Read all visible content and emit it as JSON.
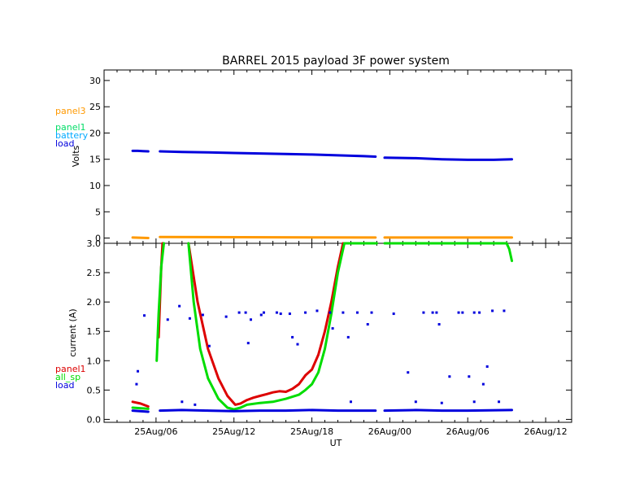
{
  "chart_data": {
    "type": "line",
    "title": "BARREL 2015 payload 3F power system",
    "xlabel": "UT",
    "x_ticks": [
      "25Aug/06",
      "25Aug/12",
      "25Aug/18",
      "26Aug/00",
      "26Aug/06",
      "26Aug/12"
    ],
    "x_range_hours": [
      2,
      38
    ],
    "x_tick_hours": [
      6,
      12,
      18,
      24,
      30,
      36
    ],
    "panels": [
      {
        "id": "voltage",
        "ylabel": "Volts",
        "ylim": [
          -1,
          32
        ],
        "yticks": [
          "0",
          "5",
          "10",
          "15",
          "20",
          "25",
          "30"
        ],
        "ytick_values": [
          0,
          5,
          10,
          15,
          20,
          25,
          30
        ],
        "legend": [
          {
            "name": "panel3",
            "color": "#ff9900"
          },
          {
            "name": "panel1",
            "color": "#00dd66"
          },
          {
            "name": "battery",
            "color": "#00aaff"
          },
          {
            "name": "load",
            "color": "#0000dd"
          }
        ],
        "series": [
          {
            "name": "load",
            "color": "#0000dd",
            "segments": [
              [
                [
                  4.2,
                  16.6
                ],
                [
                  4.6,
                  16.6
                ],
                [
                  5.0,
                  16.55
                ],
                [
                  5.4,
                  16.5
                ]
              ],
              [
                [
                  6.3,
                  16.5
                ],
                [
                  8,
                  16.4
                ],
                [
                  10,
                  16.3
                ],
                [
                  12,
                  16.2
                ],
                [
                  14,
                  16.1
                ],
                [
                  16,
                  16.0
                ],
                [
                  18,
                  15.9
                ],
                [
                  20,
                  15.75
                ],
                [
                  22,
                  15.6
                ],
                [
                  22.9,
                  15.5
                ]
              ],
              [
                [
                  23.6,
                  15.3
                ],
                [
                  26,
                  15.2
                ],
                [
                  28,
                  15.0
                ],
                [
                  30,
                  14.9
                ],
                [
                  32,
                  14.9
                ],
                [
                  33.4,
                  15.0
                ]
              ]
            ]
          },
          {
            "name": "panel3",
            "color": "#ff9900",
            "segments": [
              [
                [
                  4.2,
                  0.1
                ],
                [
                  5.4,
                  0.0
                ]
              ],
              [
                [
                  6.3,
                  0.2
                ],
                [
                  22.9,
                  0.1
                ]
              ],
              [
                [
                  23.6,
                  0.1
                ],
                [
                  33.4,
                  0.1
                ]
              ]
            ]
          }
        ]
      },
      {
        "id": "current",
        "ylabel": "current (A)",
        "ylim": [
          -0.05,
          3.0
        ],
        "yticks": [
          "0.0",
          "0.5",
          "1.0",
          "1.5",
          "2.0",
          "2.5",
          "3.0"
        ],
        "ytick_values": [
          0,
          0.5,
          1.0,
          1.5,
          2.0,
          2.5,
          3.0
        ],
        "legend": [
          {
            "name": "panel1",
            "color": "#dd0000"
          },
          {
            "name": "all_sp",
            "color": "#00dd00"
          },
          {
            "name": "load",
            "color": "#0000dd"
          }
        ],
        "series": [
          {
            "name": "panel1",
            "color": "#dd0000",
            "segments": [
              [
                [
                  4.2,
                  0.3
                ],
                [
                  4.8,
                  0.27
                ],
                [
                  5.4,
                  0.22
                ]
              ],
              [
                [
                  6.2,
                  1.4
                ],
                [
                  6.3,
                  2.0
                ],
                [
                  6.4,
                  2.6
                ],
                [
                  6.5,
                  3.0
                ]
              ],
              [
                [
                  8.5,
                  3.0
                ],
                [
                  9.2,
                  2.0
                ],
                [
                  10.0,
                  1.2
                ],
                [
                  10.8,
                  0.7
                ],
                [
                  11.5,
                  0.4
                ],
                [
                  12.1,
                  0.25
                ],
                [
                  12.5,
                  0.27
                ],
                [
                  13.0,
                  0.33
                ],
                [
                  13.5,
                  0.37
                ],
                [
                  14.0,
                  0.4
                ],
                [
                  14.5,
                  0.43
                ],
                [
                  15.0,
                  0.46
                ],
                [
                  15.5,
                  0.48
                ],
                [
                  16.0,
                  0.47
                ],
                [
                  16.5,
                  0.52
                ],
                [
                  17.0,
                  0.6
                ],
                [
                  17.5,
                  0.75
                ],
                [
                  18.0,
                  0.85
                ],
                [
                  18.5,
                  1.1
                ],
                [
                  19.0,
                  1.5
                ],
                [
                  19.5,
                  2.0
                ],
                [
                  20.0,
                  2.6
                ],
                [
                  20.4,
                  3.0
                ]
              ]
            ]
          },
          {
            "name": "all_sp",
            "color": "#00dd00",
            "segments": [
              [
                [
                  4.2,
                  0.2
                ],
                [
                  5.4,
                  0.18
                ]
              ],
              [
                [
                  6.05,
                  1.0
                ],
                [
                  6.2,
                  1.8
                ],
                [
                  6.4,
                  2.6
                ],
                [
                  6.6,
                  3.0
                ]
              ],
              [
                [
                  8.5,
                  3.0
                ],
                [
                  8.9,
                  2.0
                ],
                [
                  9.4,
                  1.2
                ],
                [
                  10.0,
                  0.7
                ],
                [
                  10.8,
                  0.35
                ],
                [
                  11.5,
                  0.2
                ],
                [
                  12.0,
                  0.17
                ],
                [
                  12.5,
                  0.2
                ],
                [
                  13.0,
                  0.25
                ],
                [
                  14.0,
                  0.28
                ],
                [
                  15.0,
                  0.3
                ],
                [
                  16.0,
                  0.35
                ],
                [
                  17.0,
                  0.42
                ],
                [
                  17.5,
                  0.5
                ],
                [
                  18.0,
                  0.6
                ],
                [
                  18.5,
                  0.8
                ],
                [
                  19.0,
                  1.2
                ],
                [
                  19.5,
                  1.8
                ],
                [
                  20.0,
                  2.5
                ],
                [
                  20.5,
                  3.0
                ],
                [
                  23.0,
                  3.0
                ]
              ],
              [
                [
                  23.6,
                  3.0
                ],
                [
                  33.0,
                  3.0
                ],
                [
                  33.2,
                  2.9
                ],
                [
                  33.4,
                  2.7
                ]
              ]
            ]
          },
          {
            "name": "load",
            "color": "#0000dd",
            "segments": [
              [
                [
                  4.2,
                  0.15
                ],
                [
                  5.4,
                  0.13
                ]
              ],
              [
                [
                  6.3,
                  0.15
                ],
                [
                  8,
                  0.16
                ],
                [
                  10,
                  0.15
                ],
                [
                  12,
                  0.14
                ],
                [
                  14,
                  0.15
                ],
                [
                  16,
                  0.15
                ],
                [
                  18,
                  0.16
                ],
                [
                  20,
                  0.15
                ],
                [
                  22.9,
                  0.15
                ]
              ],
              [
                [
                  23.6,
                  0.15
                ],
                [
                  26,
                  0.16
                ],
                [
                  28,
                  0.15
                ],
                [
                  30,
                  0.15
                ],
                [
                  33.4,
                  0.16
                ]
              ]
            ]
          }
        ],
        "load_spikes": [
          [
            4.5,
            0.6
          ],
          [
            4.6,
            0.82
          ],
          [
            5.1,
            1.77
          ],
          [
            6.9,
            1.7
          ],
          [
            7.8,
            1.93
          ],
          [
            8.6,
            1.72
          ],
          [
            9.6,
            1.78
          ],
          [
            10.1,
            1.25
          ],
          [
            11.4,
            1.75
          ],
          [
            12.4,
            1.82
          ],
          [
            12.9,
            1.82
          ],
          [
            13.1,
            1.3
          ],
          [
            13.3,
            1.7
          ],
          [
            14.1,
            1.78
          ],
          [
            14.3,
            1.82
          ],
          [
            15.3,
            1.82
          ],
          [
            15.6,
            1.8
          ],
          [
            16.3,
            1.8
          ],
          [
            16.5,
            1.4
          ],
          [
            16.9,
            1.28
          ],
          [
            17.5,
            1.82
          ],
          [
            18.4,
            1.85
          ],
          [
            19.4,
            1.82
          ],
          [
            19.6,
            1.55
          ],
          [
            20.4,
            1.82
          ],
          [
            20.8,
            1.4
          ],
          [
            21.5,
            1.82
          ],
          [
            22.3,
            1.62
          ],
          [
            22.6,
            1.82
          ],
          [
            24.3,
            1.8
          ],
          [
            25.4,
            0.8
          ],
          [
            26.6,
            1.82
          ],
          [
            27.3,
            1.82
          ],
          [
            27.6,
            1.82
          ],
          [
            27.8,
            1.62
          ],
          [
            28.6,
            0.73
          ],
          [
            29.3,
            1.82
          ],
          [
            29.6,
            1.82
          ],
          [
            30.1,
            0.73
          ],
          [
            30.5,
            1.82
          ],
          [
            30.9,
            1.82
          ],
          [
            31.2,
            0.6
          ],
          [
            31.5,
            0.9
          ],
          [
            31.9,
            1.85
          ],
          [
            32.4,
            0.3
          ],
          [
            32.8,
            1.85
          ],
          [
            8.0,
            0.3
          ],
          [
            9.0,
            0.25
          ],
          [
            21.0,
            0.3
          ],
          [
            26.0,
            0.3
          ],
          [
            28.0,
            0.28
          ],
          [
            30.5,
            0.3
          ]
        ]
      }
    ]
  }
}
